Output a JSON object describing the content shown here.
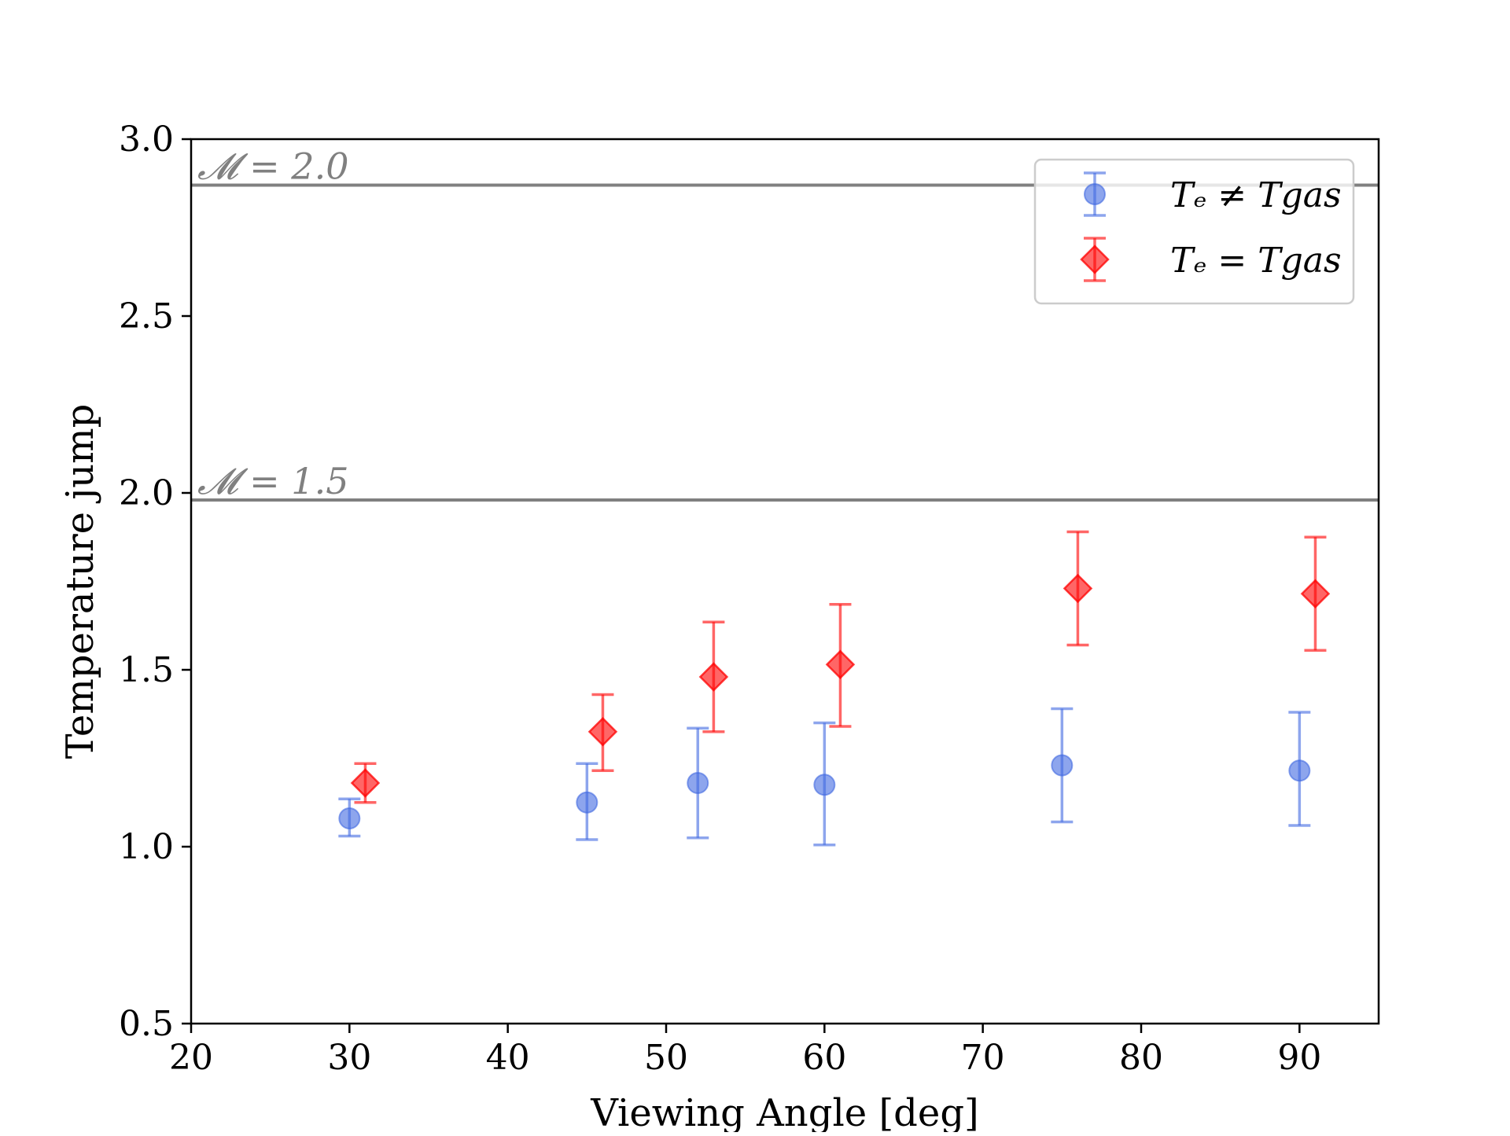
{
  "chart_data": {
    "type": "scatter",
    "title": "",
    "xlabel": "Viewing Angle [deg]",
    "ylabel": "Temperature jump",
    "xlim": [
      20,
      95
    ],
    "ylim": [
      0.5,
      3.0
    ],
    "xticks": [
      20,
      30,
      40,
      50,
      60,
      70,
      80,
      90
    ],
    "yticks": [
      0.5,
      1.0,
      1.5,
      2.0,
      2.5,
      3.0
    ],
    "xtick_labels": [
      "20",
      "30",
      "40",
      "50",
      "60",
      "70",
      "80",
      "90"
    ],
    "ytick_labels": [
      "0.5",
      "1.0",
      "1.5",
      "2.0",
      "2.5",
      "3.0"
    ],
    "grid": false,
    "legend_position": "top-right",
    "reference_lines": [
      {
        "label": "𝓜 = 2.0",
        "y": 2.87,
        "color": "#808080"
      },
      {
        "label": "𝓜 = 1.5",
        "y": 1.98,
        "color": "#808080"
      }
    ],
    "series": [
      {
        "name": "Tₑ ≠ T_gas",
        "legend_label": "Tₑ ≠ Tgas",
        "marker": "circle",
        "color": "#4169e1",
        "x": [
          30,
          45,
          52,
          60,
          75,
          90
        ],
        "y": [
          1.08,
          1.125,
          1.18,
          1.175,
          1.23,
          1.215
        ],
        "yerr_low": [
          1.03,
          1.02,
          1.025,
          1.005,
          1.07,
          1.06
        ],
        "yerr_high": [
          1.135,
          1.235,
          1.335,
          1.35,
          1.39,
          1.38
        ]
      },
      {
        "name": "Tₑ = T_gas",
        "legend_label": "Tₑ = Tgas",
        "marker": "diamond",
        "color": "#ff0000",
        "x": [
          31,
          46,
          53,
          61,
          76,
          91
        ],
        "y": [
          1.18,
          1.325,
          1.48,
          1.515,
          1.73,
          1.715
        ],
        "yerr_low": [
          1.125,
          1.215,
          1.325,
          1.34,
          1.57,
          1.555
        ],
        "yerr_high": [
          1.235,
          1.43,
          1.635,
          1.685,
          1.89,
          1.875
        ]
      }
    ]
  }
}
